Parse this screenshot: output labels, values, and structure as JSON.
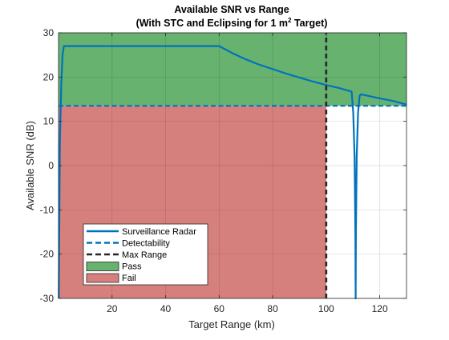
{
  "chart_data": {
    "type": "line",
    "title": {
      "line1": "Available SNR vs Range",
      "line2_prefix": "(With STC and Eclipsing for 1 m",
      "line2_sup": "2",
      "line2_suffix": " Target)"
    },
    "xlabel": "Target Range (km)",
    "ylabel": "Available SNR (dB)",
    "xlim": [
      0,
      130
    ],
    "ylim": [
      -30,
      30
    ],
    "xticks": [
      20,
      40,
      60,
      80,
      100,
      120
    ],
    "yticks": [
      -30,
      -20,
      -10,
      0,
      10,
      20,
      30
    ],
    "grid": true,
    "legend_position": "lower-left",
    "detectability_threshold": 13.5,
    "max_range": 100,
    "colors": {
      "radar": "#0072BD",
      "detectability": "#0072BD",
      "max_range": "#262626",
      "pass": "#66B26E",
      "fail": "#D6807E"
    },
    "regions": [
      {
        "name": "Pass",
        "y_from": 13.5,
        "y_to": 30,
        "x_from": 0,
        "x_to": 130
      },
      {
        "name": "Fail",
        "y_from": -30,
        "y_to": 13.5,
        "x_from": 0,
        "x_to": 100
      }
    ],
    "series": [
      {
        "name": "Surveillance Radar",
        "style": "solid",
        "x": [
          0.1,
          0.5,
          1,
          1.5,
          2,
          3,
          5,
          10,
          20,
          40,
          60,
          65,
          70,
          75,
          80,
          85,
          90,
          95,
          100,
          105,
          109.5,
          110.1,
          110.6,
          110.9,
          111.0,
          111.1,
          111.4,
          111.9,
          112.5,
          113.0,
          120,
          125,
          130
        ],
        "y": [
          -30,
          5,
          18,
          25,
          27,
          27,
          27,
          27,
          27,
          27,
          27,
          25.4,
          24.0,
          22.8,
          21.8,
          20.8,
          19.9,
          19.0,
          18.2,
          17.5,
          16.7,
          12,
          2,
          -15,
          -30,
          -15,
          2,
          12,
          15.8,
          16.1,
          15.2,
          14.6,
          13.8
        ]
      },
      {
        "name": "Detectability",
        "style": "dashed",
        "x": [
          0,
          130
        ],
        "y": [
          13.5,
          13.5
        ]
      },
      {
        "name": "Max Range",
        "style": "dashed",
        "x": [
          100,
          100
        ],
        "y": [
          -30,
          30
        ]
      }
    ],
    "legend": [
      "Surveillance Radar",
      "Detectability",
      "Max Range",
      "Pass",
      "Fail"
    ]
  }
}
